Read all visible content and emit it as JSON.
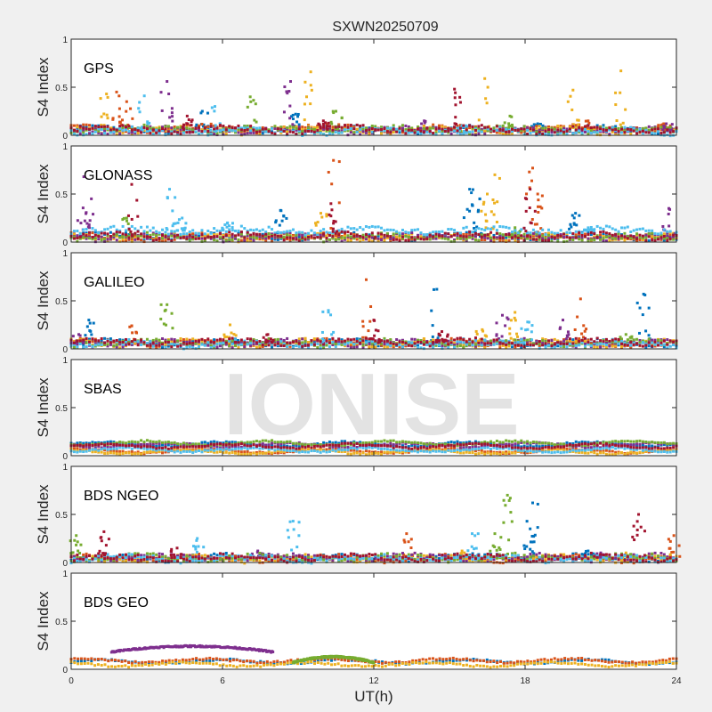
{
  "chart_data": {
    "type": "scatter",
    "title": "SXWN20250709",
    "xlabel": "UT(h)",
    "ylabel": "S4 Index",
    "xlim": [
      0,
      24
    ],
    "ylim": [
      0,
      1
    ],
    "xticks": [
      0,
      6,
      12,
      18,
      24
    ],
    "xtick_labels": [
      "0",
      "6",
      "12",
      "18",
      "24"
    ],
    "yticks": [
      0,
      0.5,
      1
    ],
    "ytick_labels": [
      "0",
      "0.5",
      "1"
    ],
    "grid": false,
    "legend": "none",
    "watermark": "IONISE",
    "colors": [
      "#0072bd",
      "#d95319",
      "#edb120",
      "#7e2f8e",
      "#77ac30",
      "#4dbeee",
      "#a2142f"
    ],
    "panels": [
      {
        "label": "GPS",
        "series": [
          {
            "color_index": 0,
            "baseline": 0.06,
            "peaks": [
              [
                5.2,
                0.25
              ],
              [
                8.9,
                0.22
              ],
              [
                18.5,
                0.12
              ]
            ]
          },
          {
            "color_index": 1,
            "baseline": 0.07,
            "peaks": [
              [
                1.8,
                0.45
              ],
              [
                2.2,
                0.35
              ],
              [
                20.5,
                0.15
              ],
              [
                23.5,
                0.12
              ]
            ]
          },
          {
            "color_index": 2,
            "baseline": 0.05,
            "peaks": [
              [
                1.4,
                0.43
              ],
              [
                9.5,
                0.66
              ],
              [
                16.4,
                0.59
              ],
              [
                21.8,
                0.67
              ],
              [
                19.9,
                0.47
              ]
            ]
          },
          {
            "color_index": 3,
            "baseline": 0.05,
            "peaks": [
              [
                3.8,
                0.56
              ],
              [
                8.7,
                0.56
              ],
              [
                14.0,
                0.15
              ],
              [
                23.6,
                0.12
              ]
            ]
          },
          {
            "color_index": 4,
            "baseline": 0.06,
            "peaks": [
              [
                7.1,
                0.4
              ],
              [
                10.5,
                0.25
              ],
              [
                17.4,
                0.2
              ]
            ]
          },
          {
            "color_index": 5,
            "baseline": 0.04,
            "peaks": [
              [
                2.9,
                0.41
              ],
              [
                5.7,
                0.3
              ],
              [
                15.5,
                0.1
              ]
            ]
          },
          {
            "color_index": 6,
            "baseline": 0.06,
            "peaks": [
              [
                15.2,
                0.48
              ],
              [
                10.0,
                0.15
              ],
              [
                4.6,
                0.2
              ]
            ]
          }
        ]
      },
      {
        "label": "GLONASS",
        "series": [
          {
            "color_index": 0,
            "baseline": 0.06,
            "peaks": [
              [
                8.3,
                0.33
              ],
              [
                16.2,
                0.45
              ],
              [
                20.0,
                0.3
              ],
              [
                15.8,
                0.55
              ]
            ]
          },
          {
            "color_index": 1,
            "baseline": 0.05,
            "peaks": [
              [
                10.4,
                0.85
              ],
              [
                18.3,
                0.77
              ],
              [
                18.5,
                0.5
              ]
            ]
          },
          {
            "color_index": 2,
            "baseline": 0.05,
            "peaks": [
              [
                9.9,
                0.3
              ],
              [
                16.8,
                0.7
              ],
              [
                16.5,
                0.5
              ]
            ]
          },
          {
            "color_index": 3,
            "baseline": 0.05,
            "peaks": [
              [
                0.5,
                0.68
              ],
              [
                0.8,
                0.45
              ],
              [
                23.7,
                0.35
              ]
            ]
          },
          {
            "color_index": 4,
            "baseline": 0.05,
            "peaks": [
              [
                2.2,
                0.25
              ],
              [
                17.6,
                0.15
              ]
            ]
          },
          {
            "color_index": 5,
            "baseline": 0.12,
            "peaks": [
              [
                3.9,
                0.55
              ],
              [
                4.4,
                0.25
              ],
              [
                6.2,
                0.2
              ],
              [
                20.5,
                0.13
              ]
            ]
          },
          {
            "color_index": 6,
            "baseline": 0.06,
            "peaks": [
              [
                2.4,
                0.6
              ],
              [
                10.3,
                0.4
              ],
              [
                18.2,
                0.55
              ]
            ]
          }
        ]
      },
      {
        "label": "GALILEO",
        "series": [
          {
            "color_index": 0,
            "baseline": 0.06,
            "peaks": [
              [
                0.7,
                0.3
              ],
              [
                14.5,
                0.62
              ],
              [
                22.7,
                0.57
              ],
              [
                6.5,
                0.1
              ]
            ]
          },
          {
            "color_index": 1,
            "baseline": 0.06,
            "peaks": [
              [
                11.7,
                0.72
              ],
              [
                2.4,
                0.24
              ],
              [
                20.2,
                0.52
              ]
            ]
          },
          {
            "color_index": 2,
            "baseline": 0.06,
            "peaks": [
              [
                6.3,
                0.25
              ],
              [
                17.6,
                0.38
              ],
              [
                16.3,
                0.2
              ]
            ]
          },
          {
            "color_index": 3,
            "baseline": 0.06,
            "peaks": [
              [
                0.3,
                0.15
              ],
              [
                19.5,
                0.3
              ],
              [
                17.1,
                0.35
              ]
            ]
          },
          {
            "color_index": 4,
            "baseline": 0.06,
            "peaks": [
              [
                3.8,
                0.46
              ],
              [
                22.0,
                0.15
              ]
            ]
          },
          {
            "color_index": 5,
            "baseline": 0.05,
            "peaks": [
              [
                10.2,
                0.4
              ],
              [
                18.1,
                0.28
              ]
            ]
          },
          {
            "color_index": 6,
            "baseline": 0.07,
            "peaks": [
              [
                7.8,
                0.15
              ],
              [
                12.0,
                0.3
              ],
              [
                14.7,
                0.18
              ]
            ]
          }
        ]
      },
      {
        "label": "SBAS",
        "series": [
          {
            "color_index": 0,
            "baseline": 0.12,
            "peaks": []
          },
          {
            "color_index": 1,
            "baseline": 0.05,
            "peaks": []
          },
          {
            "color_index": 2,
            "baseline": 0.04,
            "peaks": []
          },
          {
            "color_index": 3,
            "baseline": 0.11,
            "peaks": []
          },
          {
            "color_index": 4,
            "baseline": 0.13,
            "peaks": []
          },
          {
            "color_index": 5,
            "baseline": 0.06,
            "peaks": []
          },
          {
            "color_index": 6,
            "baseline": 0.1,
            "peaks": []
          }
        ]
      },
      {
        "label": "BDS NGEO",
        "series": [
          {
            "color_index": 0,
            "baseline": 0.05,
            "peaks": [
              [
                18.3,
                0.62
              ],
              [
                18.2,
                0.35
              ],
              [
                20.5,
                0.12
              ]
            ]
          },
          {
            "color_index": 1,
            "baseline": 0.04,
            "peaks": [
              [
                13.3,
                0.3
              ],
              [
                23.9,
                0.28
              ]
            ]
          },
          {
            "color_index": 2,
            "baseline": 0.04,
            "peaks": [
              [
                15.5,
                0.12
              ],
              [
                22.0,
                0.1
              ]
            ]
          },
          {
            "color_index": 3,
            "baseline": 0.05,
            "peaks": [
              [
                7.4,
                0.12
              ],
              [
                21.0,
                0.1
              ]
            ]
          },
          {
            "color_index": 4,
            "baseline": 0.05,
            "peaks": [
              [
                0.2,
                0.28
              ],
              [
                17.3,
                0.7
              ],
              [
                16.8,
                0.3
              ]
            ]
          },
          {
            "color_index": 5,
            "baseline": 0.04,
            "peaks": [
              [
                8.8,
                0.43
              ],
              [
                5.0,
                0.25
              ],
              [
                15.9,
                0.3
              ]
            ]
          },
          {
            "color_index": 6,
            "baseline": 0.05,
            "peaks": [
              [
                1.3,
                0.32
              ],
              [
                4.2,
                0.15
              ],
              [
                22.5,
                0.5
              ]
            ]
          }
        ]
      },
      {
        "label": "BDS GEO",
        "series": [
          {
            "color_index": 0,
            "baseline": 0.08,
            "peaks": []
          },
          {
            "color_index": 1,
            "baseline": 0.09,
            "peaks": []
          },
          {
            "color_index": 2,
            "baseline": 0.05,
            "peaks": []
          },
          {
            "color_index": 3,
            "baseline": 0.24,
            "start": 1.6,
            "end": 8.0,
            "peaks": []
          },
          {
            "color_index": 4,
            "baseline": 0.13,
            "start": 8.8,
            "end": 12.0,
            "peaks": []
          }
        ]
      }
    ]
  }
}
